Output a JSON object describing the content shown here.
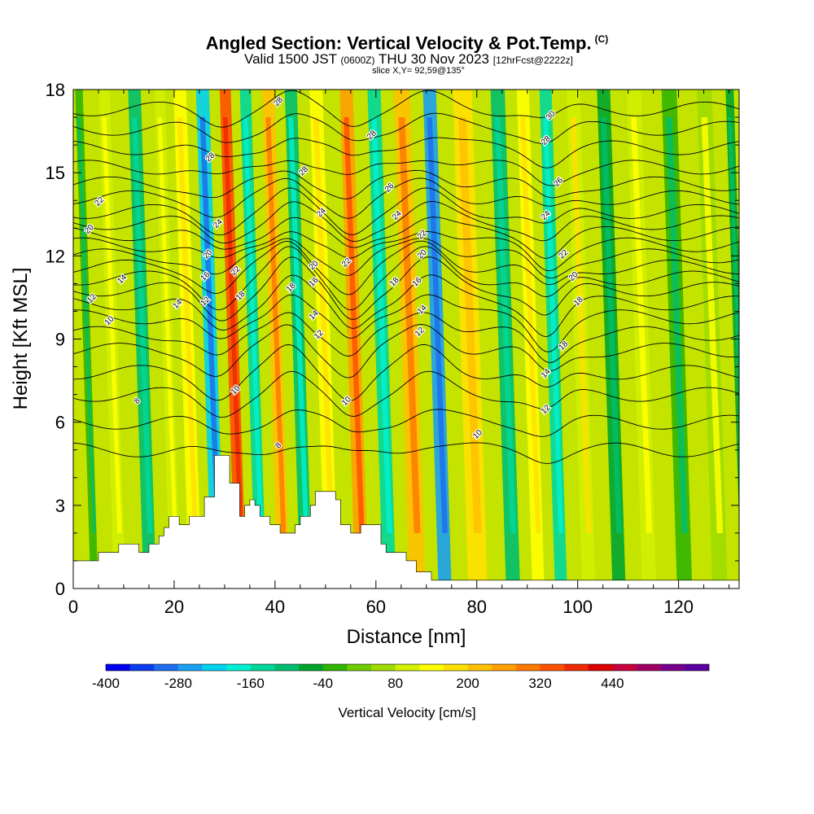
{
  "header": {
    "title": "Angled Section: Vertical Velocity & Pot.Temp.",
    "title_mark": "(C)",
    "valid_prefix": "Valid 1500 JST",
    "valid_utc": "(0600Z)",
    "valid_date": "THU 30 Nov 2023",
    "forecast": "[12hrFcst@2222z]",
    "slice": "slice X,Y= 92,59@135°"
  },
  "chart_data": {
    "type": "heatmap",
    "xlabel": "Distance [nm]",
    "ylabel": "Height [Kft MSL]",
    "xlim": [
      0,
      132
    ],
    "ylim": [
      0,
      18
    ],
    "x_ticks": [
      "0",
      "20",
      "40",
      "60",
      "80",
      "100",
      "120"
    ],
    "y_ticks": [
      "0",
      "3",
      "6",
      "9",
      "12",
      "15",
      "18"
    ],
    "colorbar": {
      "label": "Vertical Velocity [cm/s]",
      "tick_labels": [
        "-400",
        "-280",
        "-160",
        "-40",
        "80",
        "200",
        "320",
        "440"
      ],
      "colors": [
        "#0000f0",
        "#0a3cf0",
        "#1e6ef0",
        "#1aa0f0",
        "#00d2f0",
        "#00f0d2",
        "#00d79b",
        "#00be6e",
        "#00a42d",
        "#32b400",
        "#6ecd00",
        "#a0dc00",
        "#d2f000",
        "#ffff00",
        "#ffe000",
        "#ffc000",
        "#ffa000",
        "#ff7a00",
        "#ff5000",
        "#f02a00",
        "#dc0000",
        "#c8003c",
        "#a00064",
        "#78008c",
        "#5a00a0"
      ]
    },
    "terrain": [
      [
        0,
        1
      ],
      [
        5,
        1
      ],
      [
        5,
        1.3
      ],
      [
        9,
        1.3
      ],
      [
        9,
        1.6
      ],
      [
        13,
        1.6
      ],
      [
        13,
        1.3
      ],
      [
        15,
        1.3
      ],
      [
        15,
        1.6
      ],
      [
        17,
        1.6
      ],
      [
        17,
        1.9
      ],
      [
        18,
        1.9
      ],
      [
        18,
        2.2
      ],
      [
        19,
        2.2
      ],
      [
        19,
        2.6
      ],
      [
        21,
        2.6
      ],
      [
        21,
        2.3
      ],
      [
        23,
        2.3
      ],
      [
        23,
        2.6
      ],
      [
        26,
        2.6
      ],
      [
        26,
        3.3
      ],
      [
        28,
        3.3
      ],
      [
        28,
        4.8
      ],
      [
        31,
        4.8
      ],
      [
        31,
        3.8
      ],
      [
        33,
        3.8
      ],
      [
        33,
        2.6
      ],
      [
        34,
        2.6
      ],
      [
        34,
        3.0
      ],
      [
        35,
        3.0
      ],
      [
        35,
        3.2
      ],
      [
        36,
        3.2
      ],
      [
        36,
        3.0
      ],
      [
        37,
        3.0
      ],
      [
        37,
        2.6
      ],
      [
        39,
        2.6
      ],
      [
        39,
        2.3
      ],
      [
        41,
        2.3
      ],
      [
        41,
        2.0
      ],
      [
        44,
        2.0
      ],
      [
        44,
        2.3
      ],
      [
        45,
        2.3
      ],
      [
        45,
        2.6
      ],
      [
        47,
        2.6
      ],
      [
        47,
        3.0
      ],
      [
        48,
        3.0
      ],
      [
        48,
        3.5
      ],
      [
        52,
        3.5
      ],
      [
        52,
        3.2
      ],
      [
        53,
        3.2
      ],
      [
        53,
        2.3
      ],
      [
        55,
        2.3
      ],
      [
        55,
        2.0
      ],
      [
        57,
        2.0
      ],
      [
        57,
        2.3
      ],
      [
        61,
        2.3
      ],
      [
        61,
        1.6
      ],
      [
        62,
        1.6
      ],
      [
        62,
        1.3
      ],
      [
        66,
        1.3
      ],
      [
        66,
        1.0
      ],
      [
        68,
        1.0
      ],
      [
        68,
        0.6
      ],
      [
        71,
        0.6
      ],
      [
        71,
        0.3
      ],
      [
        132,
        0.3
      ],
      [
        132,
        0
      ],
      [
        0,
        0
      ]
    ],
    "velocity_bands": [
      {
        "x": 2,
        "w": 1.5,
        "v": -40
      },
      {
        "x": 7,
        "w": 2.2,
        "v": 80
      },
      {
        "x": 13,
        "w": 2.5,
        "v": -90
      },
      {
        "x": 18,
        "w": 2.0,
        "v": 90
      },
      {
        "x": 22,
        "w": 2.5,
        "v": 130
      },
      {
        "x": 26.5,
        "w": 2.6,
        "v": -240
      },
      {
        "x": 31,
        "w": 2.2,
        "v": 320
      },
      {
        "x": 35,
        "w": 2.2,
        "v": -130
      },
      {
        "x": 39.5,
        "w": 2.4,
        "v": 230
      },
      {
        "x": 44,
        "w": 2.4,
        "v": -110
      },
      {
        "x": 49,
        "w": 2.6,
        "v": 120
      },
      {
        "x": 55,
        "w": 2.6,
        "v": 260
      },
      {
        "x": 60.5,
        "w": 2.6,
        "v": -130
      },
      {
        "x": 66,
        "w": 3.2,
        "v": 220
      },
      {
        "x": 71.5,
        "w": 2.6,
        "v": -260
      },
      {
        "x": 78,
        "w": 3.8,
        "v": 160
      },
      {
        "x": 85,
        "w": 2.8,
        "v": -90
      },
      {
        "x": 90,
        "w": 2.4,
        "v": 120
      },
      {
        "x": 94.5,
        "w": 2.4,
        "v": -140
      },
      {
        "x": 100,
        "w": 2.6,
        "v": 100
      },
      {
        "x": 106,
        "w": 2.6,
        "v": -60
      },
      {
        "x": 112,
        "w": 2.8,
        "v": 90
      },
      {
        "x": 119,
        "w": 3.0,
        "v": -40
      },
      {
        "x": 126,
        "w": 3.0,
        "v": 70
      },
      {
        "x": 131,
        "w": 1.6,
        "v": -60
      }
    ],
    "isentropes": [
      {
        "value": 8,
        "base": 5.0,
        "amp": 0.4
      },
      {
        "value": 9,
        "base": 6.0,
        "amp": 0.6
      },
      {
        "value": 10,
        "base": 7.0,
        "amp": 1.0
      },
      {
        "value": 11,
        "base": 7.8,
        "amp": 1.3
      },
      {
        "value": 12,
        "base": 8.6,
        "amp": 1.5
      },
      {
        "value": 13,
        "base": 9.2,
        "amp": 1.6
      },
      {
        "value": 14,
        "base": 9.8,
        "amp": 1.7
      },
      {
        "value": 15,
        "base": 10.3,
        "amp": 1.7
      },
      {
        "value": 16,
        "base": 10.8,
        "amp": 1.6
      },
      {
        "value": 17,
        "base": 11.2,
        "amp": 1.5
      },
      {
        "value": 18,
        "base": 11.6,
        "amp": 1.4
      },
      {
        "value": 19,
        "base": 12.0,
        "amp": 1.3
      },
      {
        "value": 20,
        "base": 12.4,
        "amp": 1.2
      },
      {
        "value": 21,
        "base": 12.8,
        "amp": 1.1
      },
      {
        "value": 22,
        "base": 13.2,
        "amp": 1.0
      },
      {
        "value": 23,
        "base": 13.6,
        "amp": 1.0
      },
      {
        "value": 24,
        "base": 14.1,
        "amp": 0.9
      },
      {
        "value": 25,
        "base": 14.6,
        "amp": 0.9
      },
      {
        "value": 26,
        "base": 15.2,
        "amp": 0.8
      },
      {
        "value": 27,
        "base": 15.9,
        "amp": 0.8
      },
      {
        "value": 28,
        "base": 16.6,
        "amp": 0.7
      },
      {
        "value": 29,
        "base": 17.3,
        "amp": 0.7
      }
    ],
    "contour_labels": [
      {
        "text": "22",
        "x": 5.5,
        "y": 13.9
      },
      {
        "text": "20",
        "x": 3.5,
        "y": 12.9
      },
      {
        "text": "14",
        "x": 10,
        "y": 11.1
      },
      {
        "text": "12",
        "x": 4,
        "y": 10.4
      },
      {
        "text": "10",
        "x": 7.5,
        "y": 9.6
      },
      {
        "text": "8",
        "x": 13,
        "y": 6.7
      },
      {
        "text": "14",
        "x": 21,
        "y": 10.2
      },
      {
        "text": "28",
        "x": 27.5,
        "y": 15.5
      },
      {
        "text": "24",
        "x": 29,
        "y": 13.1
      },
      {
        "text": "20",
        "x": 27,
        "y": 12.0
      },
      {
        "text": "16",
        "x": 26.5,
        "y": 11.2
      },
      {
        "text": "12",
        "x": 26.5,
        "y": 10.3
      },
      {
        "text": "22",
        "x": 32.5,
        "y": 11.4
      },
      {
        "text": "18",
        "x": 33.5,
        "y": 10.5
      },
      {
        "text": "10",
        "x": 32.5,
        "y": 7.1
      },
      {
        "text": "28",
        "x": 41,
        "y": 17.5
      },
      {
        "text": "28",
        "x": 46,
        "y": 15.0
      },
      {
        "text": "24",
        "x": 49.5,
        "y": 13.5
      },
      {
        "text": "20",
        "x": 48,
        "y": 11.6
      },
      {
        "text": "16",
        "x": 48,
        "y": 11.0
      },
      {
        "text": "18",
        "x": 43.5,
        "y": 10.8
      },
      {
        "text": "14",
        "x": 48,
        "y": 9.8
      },
      {
        "text": "12",
        "x": 49,
        "y": 9.1
      },
      {
        "text": "22",
        "x": 54.5,
        "y": 11.7
      },
      {
        "text": "8",
        "x": 41,
        "y": 5.1
      },
      {
        "text": "10",
        "x": 54.5,
        "y": 6.7
      },
      {
        "text": "28",
        "x": 59.5,
        "y": 16.3
      },
      {
        "text": "26",
        "x": 63,
        "y": 14.4
      },
      {
        "text": "24",
        "x": 64.5,
        "y": 13.4
      },
      {
        "text": "22",
        "x": 69.5,
        "y": 12.7
      },
      {
        "text": "20",
        "x": 69.5,
        "y": 12.0
      },
      {
        "text": "18",
        "x": 64,
        "y": 11.0
      },
      {
        "text": "16",
        "x": 68.5,
        "y": 11.0
      },
      {
        "text": "14",
        "x": 69.5,
        "y": 10.0
      },
      {
        "text": "12",
        "x": 69,
        "y": 9.2
      },
      {
        "text": "10",
        "x": 80.5,
        "y": 5.5
      },
      {
        "text": "30",
        "x": 95,
        "y": 17.0
      },
      {
        "text": "28",
        "x": 94,
        "y": 16.1
      },
      {
        "text": "26",
        "x": 96.5,
        "y": 14.6
      },
      {
        "text": "24",
        "x": 94,
        "y": 13.4
      },
      {
        "text": "22",
        "x": 97.5,
        "y": 12.0
      },
      {
        "text": "20",
        "x": 99.5,
        "y": 11.2
      },
      {
        "text": "18",
        "x": 100.5,
        "y": 10.3
      },
      {
        "text": "18",
        "x": 97.5,
        "y": 8.7
      },
      {
        "text": "14",
        "x": 94,
        "y": 7.7
      },
      {
        "text": "12",
        "x": 94,
        "y": 6.4
      }
    ]
  }
}
